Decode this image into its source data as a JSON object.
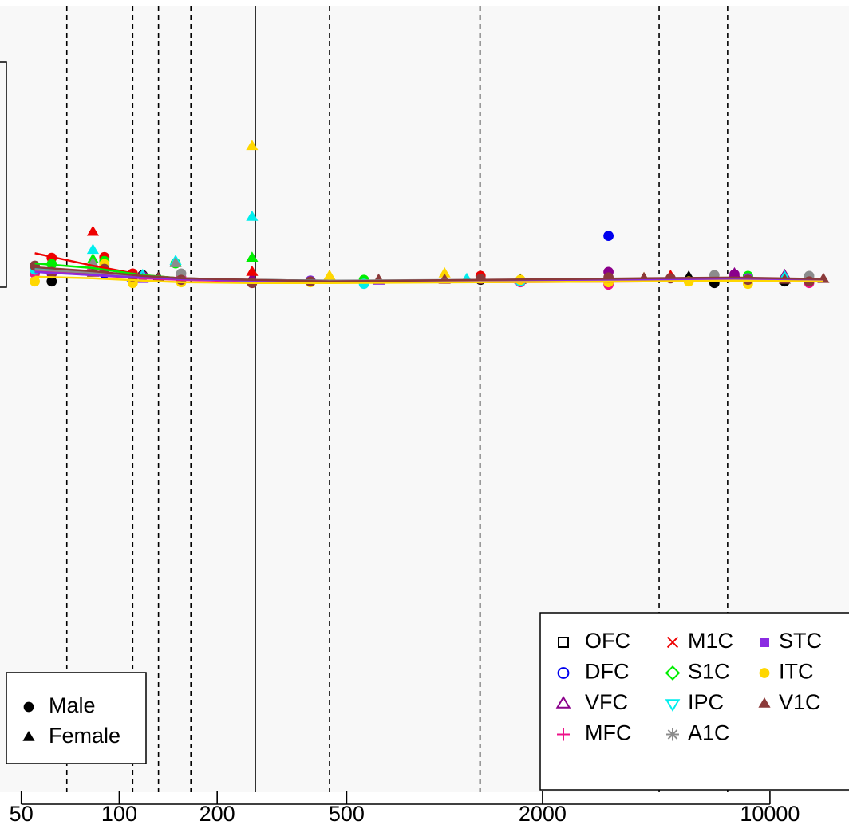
{
  "chart_data": {
    "type": "scatter",
    "xscale": "log",
    "xlim": [
      43,
      17500
    ],
    "xticks": [
      50,
      100,
      200,
      500,
      2000,
      10000
    ],
    "ylim": [
      0,
      100
    ],
    "vlines": [
      {
        "value": 69,
        "style": "dashed"
      },
      {
        "value": 110,
        "style": "dashed"
      },
      {
        "value": 132,
        "style": "dashed"
      },
      {
        "value": 166,
        "style": "dashed"
      },
      {
        "value": 262,
        "style": "solid"
      },
      {
        "value": 443,
        "style": "dashed"
      },
      {
        "value": 1285,
        "style": "dashed"
      },
      {
        "value": 4565,
        "style": "dashed"
      },
      {
        "value": 7412,
        "style": "dashed"
      }
    ],
    "fit_x": [
      55,
      83,
      118,
      155,
      256,
      443,
      1290,
      4100,
      7780,
      14600
    ],
    "sex_legend": [
      "Male",
      "Female"
    ],
    "series": [
      {
        "name": "OFC",
        "color": "#000000",
        "marker": "square-open",
        "male_x": [
          62,
          90,
          118,
          565,
          1290,
          6750,
          11100,
          13200
        ],
        "male_values": [
          65.0,
          66.5,
          65.8,
          65.0,
          65.2,
          64.8,
          65.0,
          65.3
        ],
        "female_x": [
          83,
          132,
          443,
          1710,
          5630
        ],
        "female_values": [
          66.3,
          65.5,
          65.3,
          65.2,
          65.6
        ],
        "fit": [
          66.2,
          65.9,
          65.6,
          65.4,
          65.2,
          65.1,
          65.1,
          65.2,
          65.3,
          65.2
        ]
      },
      {
        "name": "DFC",
        "color": "#0000ee",
        "marker": "circle-open",
        "male_x": [
          55,
          90,
          387,
          3190,
          8560
        ],
        "male_values": [
          66.2,
          66.0,
          65.1,
          70.8,
          65.6
        ],
        "female_x": [
          110,
          627,
          4950
        ],
        "female_values": [
          65.5,
          65.1,
          65.6
        ],
        "fit": [
          66.3,
          65.9,
          65.5,
          65.3,
          65.1,
          65.0,
          65.1,
          65.3,
          65.4,
          65.3
        ]
      },
      {
        "name": "VFC",
        "color": "#8b008b",
        "marker": "triangle-open",
        "male_x": [
          62,
          118,
          3190,
          7780
        ],
        "male_values": [
          66.0,
          65.7,
          66.2,
          65.9
        ],
        "female_x": [
          83,
          256,
          627,
          7780,
          11100
        ],
        "female_values": [
          66.5,
          65.4,
          65.1,
          66.0,
          65.8
        ],
        "fit": [
          66.4,
          66.0,
          65.6,
          65.3,
          65.1,
          65.0,
          65.1,
          65.3,
          65.4,
          65.3
        ]
      },
      {
        "name": "MFC",
        "color": "#ee1289",
        "marker": "plus",
        "male_x": [
          55,
          155,
          1710,
          3190,
          13200
        ],
        "male_values": [
          66.0,
          65.5,
          64.9,
          64.6,
          64.8
        ],
        "female_x": [
          83,
          1000
        ],
        "female_values": [
          67.0,
          65.2
        ],
        "fit": [
          66.3,
          65.8,
          65.4,
          65.2,
          65.0,
          64.9,
          64.9,
          65.0,
          65.1,
          65.0
        ]
      },
      {
        "name": "M1C",
        "color": "#ee0000",
        "marker": "cross",
        "male_x": [
          62,
          90,
          110,
          1290,
          8560
        ],
        "male_values": [
          68.0,
          68.1,
          66.0,
          65.7,
          65.6
        ],
        "female_x": [
          83,
          256,
          4950
        ],
        "female_values": [
          71.3,
          66.2,
          65.7
        ],
        "fit": [
          68.6,
          67.0,
          65.8,
          65.4,
          65.1,
          65.0,
          65.1,
          65.2,
          65.3,
          65.2
        ]
      },
      {
        "name": "S1C",
        "color": "#00ee00",
        "marker": "diamond-open",
        "male_x": [
          62,
          90,
          149,
          565,
          8560
        ],
        "male_values": [
          67.2,
          67.6,
          67.3,
          65.2,
          65.7
        ],
        "female_x": [
          83,
          149,
          256,
          6750
        ],
        "female_values": [
          67.8,
          67.4,
          68.0,
          65.6
        ],
        "fit": [
          67.3,
          66.7,
          65.8,
          65.4,
          65.1,
          65.0,
          65.1,
          65.2,
          65.3,
          65.2
        ]
      },
      {
        "name": "IPC",
        "color": "#00eeee",
        "marker": "triangle-down-open",
        "male_x": [
          55,
          90,
          565,
          1710
        ],
        "male_values": [
          66.5,
          67.0,
          64.7,
          65.0
        ],
        "female_x": [
          83,
          118,
          149,
          256,
          1170,
          11100
        ],
        "female_values": [
          69.0,
          65.8,
          67.6,
          73.2,
          65.3,
          65.6
        ],
        "fit": [
          66.6,
          66.2,
          65.6,
          65.3,
          65.1,
          65.0,
          65.1,
          65.2,
          65.3,
          65.2
        ]
      },
      {
        "name": "A1C",
        "color": "#8c8c8c",
        "marker": "asterisk",
        "male_x": [
          90,
          155,
          6750,
          13200
        ],
        "male_values": [
          66.6,
          66.0,
          65.8,
          65.7
        ],
        "female_x": [
          83,
          149
        ],
        "female_values": [
          67.3,
          67.3
        ],
        "fit": [
          66.5,
          66.1,
          65.7,
          65.4,
          65.2,
          65.1,
          65.2,
          65.3,
          65.4,
          65.3
        ]
      },
      {
        "name": "STC",
        "color": "#8a2be2",
        "marker": "square",
        "male_x": [
          110,
          387,
          8560
        ],
        "male_values": [
          65.5,
          65.1,
          65.4
        ],
        "female_x": [
          118,
          627
        ],
        "female_values": [
          65.3,
          65.1
        ],
        "fit": [
          66.2,
          65.8,
          65.5,
          65.3,
          65.1,
          65.0,
          65.1,
          65.2,
          65.3,
          65.2
        ]
      },
      {
        "name": "ITC",
        "color": "#ffd700",
        "marker": "circle",
        "male_x": [
          55,
          90,
          110,
          155,
          387,
          1710,
          3190,
          5630,
          8560
        ],
        "male_values": [
          65.0,
          67.2,
          64.8,
          64.9,
          64.9,
          65.2,
          64.9,
          65.0,
          64.7
        ],
        "female_x": [
          83,
          256,
          443,
          1000,
          4100
        ],
        "female_values": [
          66.1,
          82.2,
          65.7,
          66.0,
          65.4
        ],
        "fit": [
          65.6,
          65.4,
          65.1,
          64.9,
          64.8,
          64.8,
          64.9,
          65.0,
          65.1,
          65.0
        ]
      },
      {
        "name": "V1C",
        "color": "#8b3a3a",
        "marker": "triangle",
        "male_x": [
          55,
          62,
          90,
          110,
          155,
          256,
          387,
          1290,
          3190,
          4950,
          8560,
          13200
        ],
        "male_values": [
          67.0,
          66.2,
          66.6,
          65.6,
          65.2,
          64.8,
          65.0,
          65.3,
          65.5,
          65.4,
          65.2,
          65.0
        ],
        "female_x": [
          83,
          132,
          627,
          1000,
          4100,
          11100,
          14600
        ],
        "female_values": [
          66.1,
          65.4,
          65.2,
          65.2,
          65.4,
          65.2,
          65.3
        ],
        "fit": [
          66.8,
          66.3,
          65.7,
          65.4,
          65.2,
          65.0,
          65.2,
          65.4,
          65.5,
          65.3
        ]
      }
    ]
  }
}
